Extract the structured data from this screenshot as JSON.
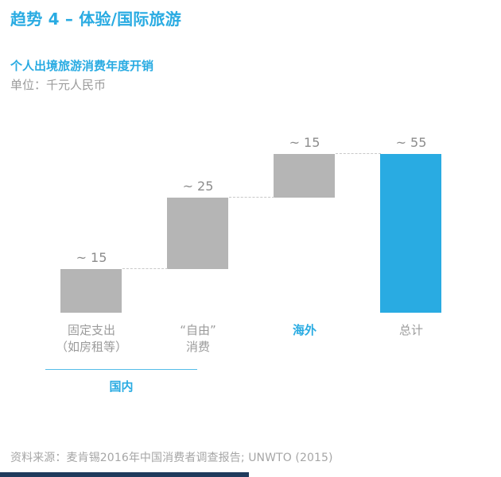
{
  "header": {
    "title": "趋势 4 – 体验/国际旅游"
  },
  "chart_data": {
    "type": "bar",
    "subtype": "waterfall",
    "title": "个人出境旅游消费年度开销",
    "unit_label": "单位：千元人民币",
    "categories": [
      "固定支出（如房租等）",
      "“自由”消费",
      "海外",
      "总计"
    ],
    "values": [
      15,
      25,
      15,
      55
    ],
    "ylim": [
      0,
      55
    ],
    "grid": false,
    "legend": false,
    "bars": [
      {
        "label": "固定支出\n（如房租等）",
        "value": 15,
        "start": 0,
        "value_label": "~ 15",
        "bar_color": "#b5b5b5",
        "label_color": "#9b9b9b",
        "label_bold": false
      },
      {
        "label": "“自由”\n消费",
        "value": 25,
        "start": 15,
        "value_label": "~ 25",
        "bar_color": "#b5b5b5",
        "label_color": "#9b9b9b",
        "label_bold": false
      },
      {
        "label": "海外",
        "value": 15,
        "start": 40,
        "value_label": "~ 15",
        "bar_color": "#b5b5b5",
        "label_color": "#29abe2",
        "label_bold": true
      },
      {
        "label": "总计",
        "value": 55,
        "start": 0,
        "value_label": "~ 55",
        "bar_color": "#29abe2",
        "label_color": "#9b9b9b",
        "label_bold": false
      }
    ],
    "group_label": "国内"
  },
  "footer": {
    "source": "资料来源：麦肯锡2016年中国消费者调查报告; UNWTO (2015)"
  },
  "colors": {
    "accent_cyan": "#29abe2",
    "bar_gray": "#b5b5b5",
    "text_gray": "#9b9b9b",
    "connector_gray": "#c8c8c8",
    "bottom_bar_navy": "#1f3a5c"
  }
}
